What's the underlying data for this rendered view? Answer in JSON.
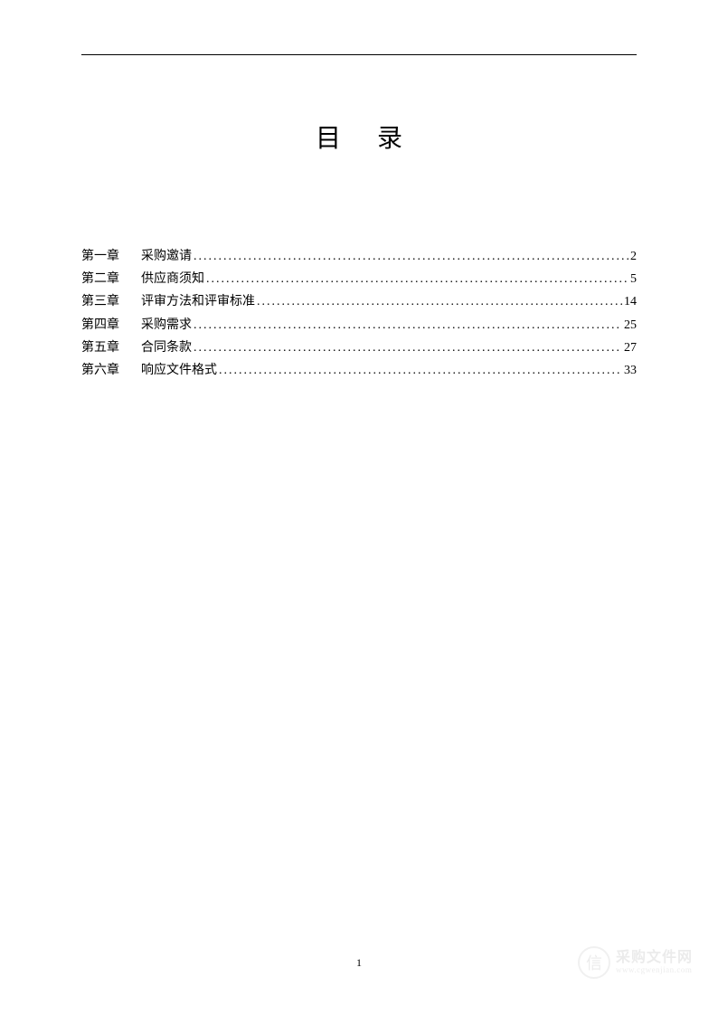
{
  "title": "目录",
  "page_number": "1",
  "toc": [
    {
      "chapter": "第一章",
      "name": "采购邀请",
      "page": "2"
    },
    {
      "chapter": "第二章",
      "name": "供应商须知",
      "page": "5"
    },
    {
      "chapter": "第三章",
      "name": "评审方法和评审标准",
      "page": "14"
    },
    {
      "chapter": "第四章",
      "name": "采购需求",
      "page": "25"
    },
    {
      "chapter": "第五章",
      "name": "合同条款",
      "page": "27"
    },
    {
      "chapter": "第六章",
      "name": "响应文件格式",
      "page": "33"
    }
  ],
  "watermark": {
    "icon_glyph": "信",
    "main_text": "采购文件网",
    "sub_text": "www.cgwenjian.com"
  },
  "colors": {
    "text": "#000000",
    "background": "#ffffff",
    "rule": "#000000",
    "watermark": "#888888"
  }
}
